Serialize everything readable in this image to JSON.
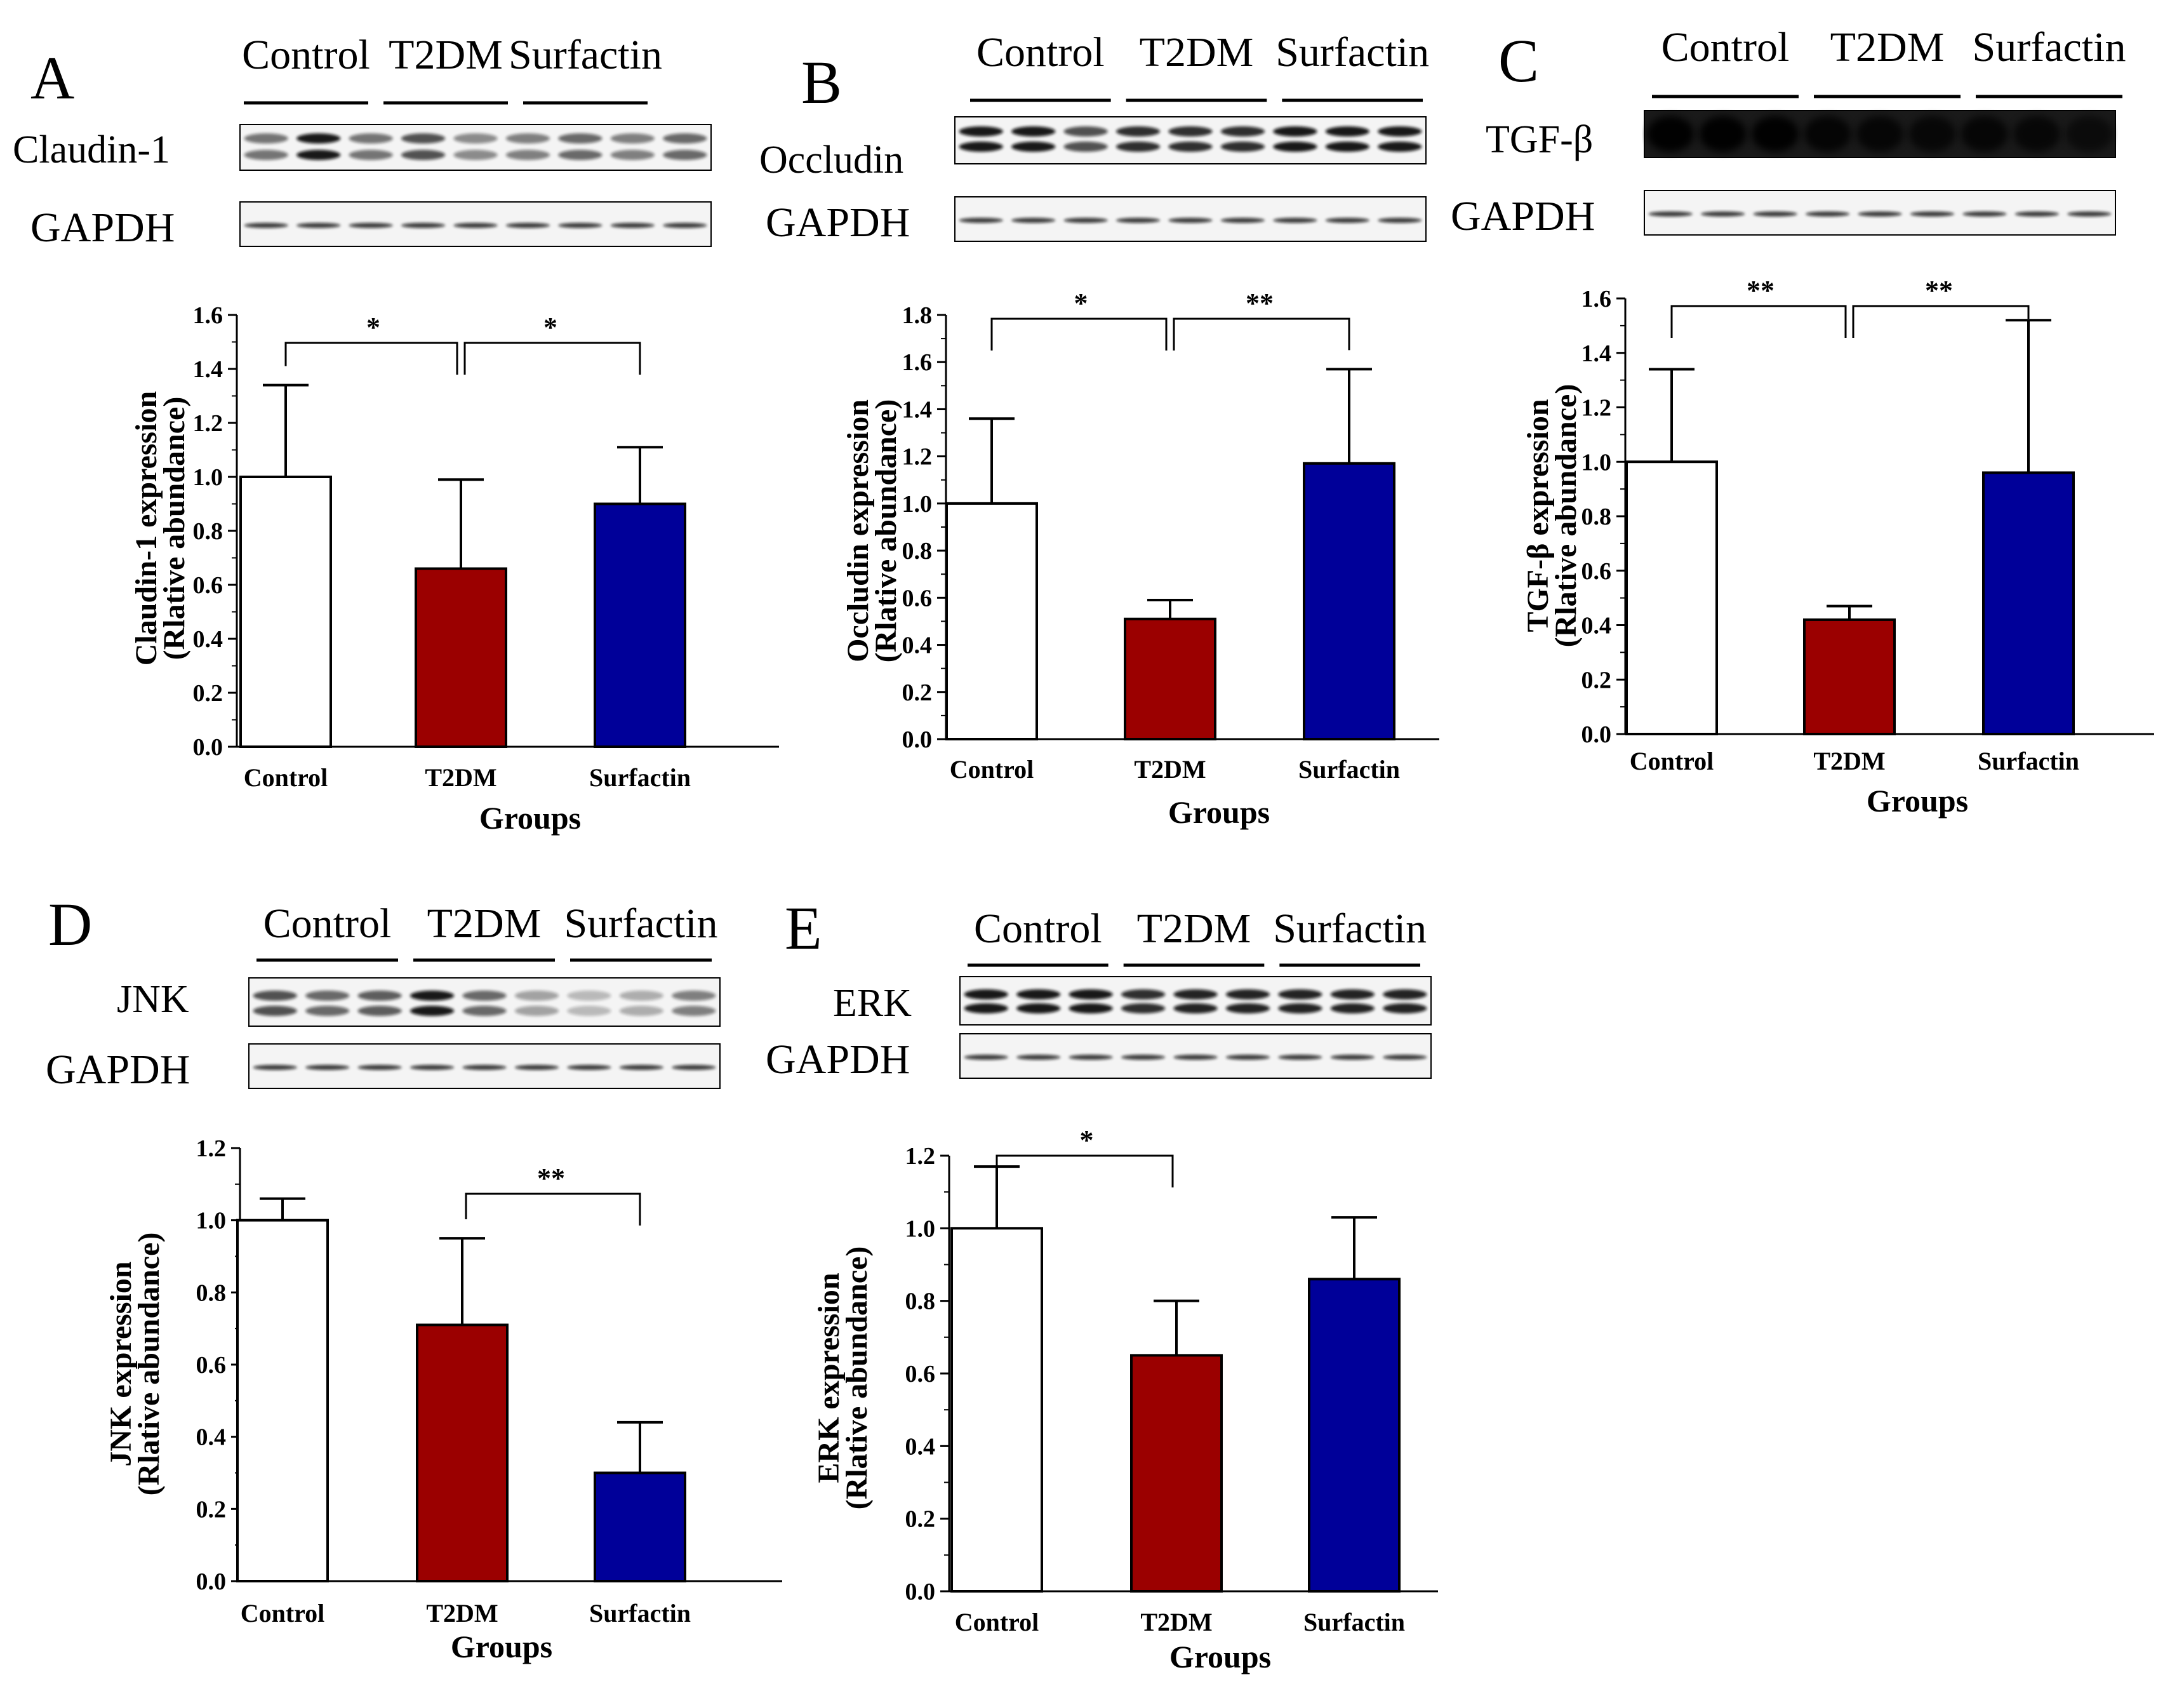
{
  "figure": {
    "group_labels": [
      "Control",
      "T2DM",
      "Surfactin"
    ],
    "loading_control": "GAPDH",
    "colors": {
      "control": "#ffffff",
      "t2dm": "#9b0000",
      "surfactin": "#000099",
      "axis": "#000000"
    }
  },
  "chart_data": [
    {
      "panel": "A",
      "type": "bar",
      "blot_protein": "Claudin-1",
      "categories": [
        "Control",
        "T2DM",
        "Surfactin"
      ],
      "values": [
        1.0,
        0.66,
        0.9
      ],
      "errors": [
        0.34,
        0.33,
        0.21
      ],
      "ylabel": "Claudin-1 expression",
      "ylabel2": "(Rlative abundance)",
      "xlabel": "Groups",
      "ylim": [
        0,
        1.6
      ],
      "yticks": [
        "0.0",
        "0.2",
        "0.4",
        "0.6",
        "0.8",
        "1.0",
        "1.2",
        "1.4",
        "1.6"
      ],
      "significance": [
        {
          "from": 0,
          "to": 1,
          "label": "*"
        },
        {
          "from": 1,
          "to": 2,
          "label": "*"
        }
      ]
    },
    {
      "panel": "B",
      "type": "bar",
      "blot_protein": "Occludin",
      "categories": [
        "Control",
        "T2DM",
        "Surfactin"
      ],
      "values": [
        1.0,
        0.51,
        1.17
      ],
      "errors": [
        0.36,
        0.08,
        0.4
      ],
      "ylabel": "Occludin expression",
      "ylabel2": "(Rlative abundance)",
      "xlabel": "Groups",
      "ylim": [
        0,
        1.8
      ],
      "yticks": [
        "0.0",
        "0.2",
        "0.4",
        "0.6",
        "0.8",
        "1.0",
        "1.2",
        "1.4",
        "1.6",
        "1.8"
      ],
      "significance": [
        {
          "from": 0,
          "to": 1,
          "label": "*"
        },
        {
          "from": 1,
          "to": 2,
          "label": "**"
        }
      ]
    },
    {
      "panel": "C",
      "type": "bar",
      "blot_protein": "TGF-β",
      "categories": [
        "Control",
        "T2DM",
        "Surfactin"
      ],
      "values": [
        1.0,
        0.42,
        0.96
      ],
      "errors": [
        0.34,
        0.05,
        0.56
      ],
      "ylabel": "TGF-β expression",
      "ylabel2": "(Rlative abundance)",
      "xlabel": "Groups",
      "ylim": [
        0,
        1.6
      ],
      "yticks": [
        "0.0",
        "0.2",
        "0.4",
        "0.6",
        "0.8",
        "1.0",
        "1.2",
        "1.4",
        "1.6"
      ],
      "significance": [
        {
          "from": 0,
          "to": 1,
          "label": "**"
        },
        {
          "from": 1,
          "to": 2,
          "label": "**"
        }
      ]
    },
    {
      "panel": "D",
      "type": "bar",
      "blot_protein": "JNK",
      "categories": [
        "Control",
        "T2DM",
        "Surfactin"
      ],
      "values": [
        1.0,
        0.71,
        0.3
      ],
      "errors": [
        0.06,
        0.24,
        0.14
      ],
      "ylabel": "JNK expression",
      "ylabel2": "(Rlative abundance)",
      "xlabel": "Groups",
      "ylim": [
        0,
        1.2
      ],
      "yticks": [
        "0.0",
        "0.2",
        "0.4",
        "0.6",
        "0.8",
        "1.0",
        "1.2"
      ],
      "significance": [
        {
          "from": 1,
          "to": 2,
          "label": "**"
        }
      ]
    },
    {
      "panel": "E",
      "type": "bar",
      "blot_protein": "ERK",
      "categories": [
        "Control",
        "T2DM",
        "Surfactin"
      ],
      "values": [
        1.0,
        0.65,
        0.86
      ],
      "errors": [
        0.17,
        0.15,
        0.17
      ],
      "ylabel": "ERK expression",
      "ylabel2": "(Rlative abundance)",
      "xlabel": "Groups",
      "ylim": [
        0,
        1.2
      ],
      "yticks": [
        "0.0",
        "0.2",
        "0.4",
        "0.6",
        "0.8",
        "1.0",
        "1.2"
      ],
      "significance": [
        {
          "from": 0,
          "to": 1,
          "label": "*"
        }
      ]
    }
  ]
}
